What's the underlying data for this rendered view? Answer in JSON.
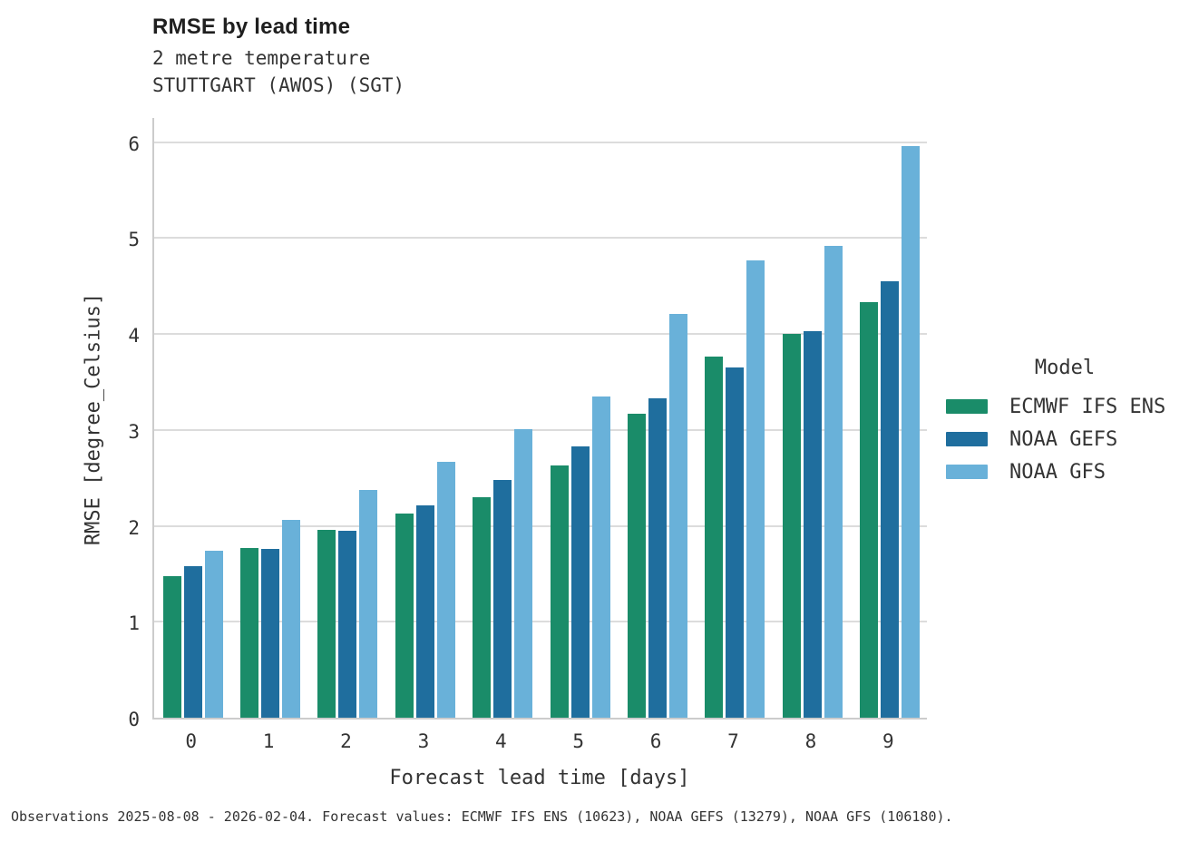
{
  "header": {
    "title": "RMSE by lead time",
    "subtitle_line1": "2 metre temperature",
    "subtitle_line2": "STUTTGART (AWOS) (SGT)"
  },
  "axes": {
    "x_title": "Forecast lead time [days]",
    "y_title": "RMSE [degree_Celsius]"
  },
  "legend": {
    "title": "Model",
    "entries": [
      {
        "label": "ECMWF IFS ENS",
        "color": "#1a8c69"
      },
      {
        "label": "NOAA GEFS",
        "color": "#1f6e9e"
      },
      {
        "label": "NOAA GFS",
        "color": "#69b1d9"
      }
    ]
  },
  "footer": {
    "text": "Observations 2025-08-08 - 2026-02-04. Forecast values: ECMWF IFS ENS (10623), NOAA GEFS (13279), NOAA GFS (106180)."
  },
  "colors": {
    "ecmwf_green": "#1a8c69",
    "gefs_dark_blue": "#1f6e9e",
    "gfs_light_blue": "#69b1d9",
    "gridline": "#dcdcdc",
    "spine": "#cccccc",
    "text": "#333333"
  },
  "chart_data": {
    "type": "bar",
    "title": "RMSE by lead time",
    "subtitle": [
      "2 metre temperature",
      "STUTTGART (AWOS) (SGT)"
    ],
    "categories": [
      "0",
      "1",
      "2",
      "3",
      "4",
      "5",
      "6",
      "7",
      "8",
      "9"
    ],
    "series": [
      {
        "name": "ECMWF IFS ENS",
        "color": "#1a8c69",
        "values": [
          1.48,
          1.77,
          1.96,
          2.13,
          2.3,
          2.63,
          3.17,
          3.76,
          4.0,
          4.33
        ]
      },
      {
        "name": "NOAA GEFS",
        "color": "#1f6e9e",
        "values": [
          1.58,
          1.76,
          1.95,
          2.21,
          2.48,
          2.83,
          3.33,
          3.65,
          4.03,
          4.55
        ]
      },
      {
        "name": "NOAA GFS",
        "color": "#69b1d9",
        "values": [
          1.74,
          2.06,
          2.37,
          2.67,
          3.01,
          3.35,
          4.21,
          4.77,
          4.92,
          5.96
        ]
      }
    ],
    "xlabel": "Forecast lead time [days]",
    "ylabel": "RMSE [degree_Celsius]",
    "ylim": [
      0,
      6.27
    ],
    "yticks": [
      0,
      1,
      2,
      3,
      4,
      5,
      6
    ],
    "grid": true,
    "legend_title": "Model",
    "legend_position": "right"
  }
}
